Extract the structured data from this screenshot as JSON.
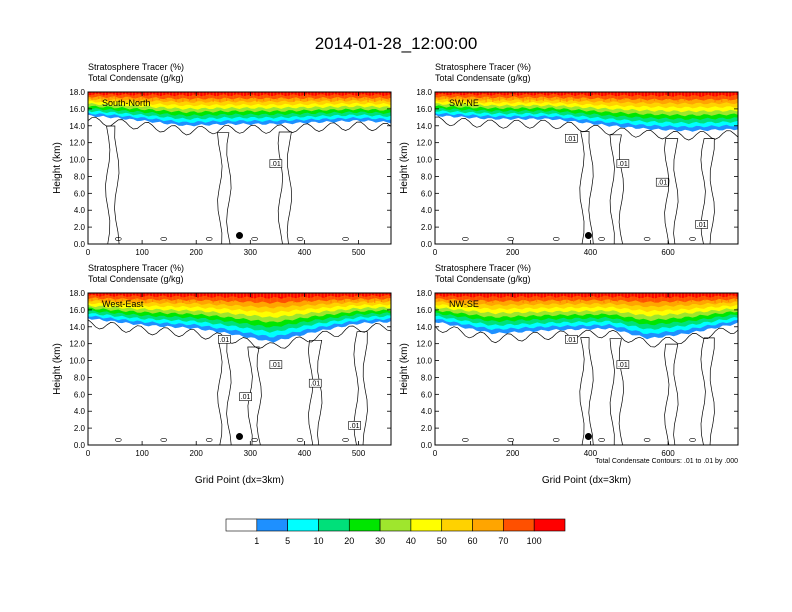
{
  "title": "2014-01-28_12:00:00",
  "colors": {
    "levels": [
      "#ffffff",
      "#1e90ff",
      "#00ffff",
      "#00e07a",
      "#00e600",
      "#9fe62d",
      "#ffff00",
      "#ffd200",
      "#ffa500",
      "#ff5000",
      "#ff0000"
    ],
    "contour": "#000000"
  },
  "footer": {
    "contour_note": "Total Condensate Contours: .01 to .01 by .000"
  },
  "chart_data": [
    {
      "type": "heatmap",
      "panel": "South-North",
      "label_line1": "Stratosphere Tracer   (%)",
      "label_line2": "Total Condensate   (g/kg)",
      "ylabel": "Height (km)",
      "xlabel": "",
      "xlim": [
        0,
        560
      ],
      "ylim": [
        0,
        18
      ],
      "x_ticks": [
        "0",
        "100",
        "200",
        "300",
        "400",
        "500"
      ],
      "y_ticks": [
        "0.0",
        "2.0",
        "4.0",
        "6.0",
        "8.0",
        "10.0",
        "12.0",
        "14.0",
        "16.0",
        "18.0"
      ],
      "marker_x": 280,
      "marker_y": 1.0,
      "contour_labels": [
        ".01"
      ],
      "tracer_bands_height_km": [
        [
          0,
          15.2
        ],
        [
          40,
          15.0
        ],
        [
          100,
          14.6
        ],
        [
          180,
          14.0
        ],
        [
          260,
          14.2
        ],
        [
          340,
          14.2
        ],
        [
          420,
          14.4
        ],
        [
          500,
          14.6
        ],
        [
          560,
          14.4
        ]
      ]
    },
    {
      "type": "heatmap",
      "panel": "SW-NE",
      "label_line1": "Stratosphere Tracer   (%)",
      "label_line2": "Total Condensate   (g/kg)",
      "ylabel": "Height (km)",
      "xlabel": "",
      "xlim": [
        0,
        780
      ],
      "ylim": [
        0,
        18
      ],
      "x_ticks": [
        "0",
        "200",
        "400",
        "600"
      ],
      "y_ticks": [
        "0.0",
        "2.0",
        "4.0",
        "6.0",
        "8.0",
        "10.0",
        "12.0",
        "14.0",
        "16.0",
        "18.0"
      ],
      "marker_x": 395,
      "marker_y": 1.0,
      "contour_labels": [
        ".01",
        ".01",
        ".01",
        ".01"
      ],
      "tracer_bands_height_km": [
        [
          0,
          15.2
        ],
        [
          150,
          14.8
        ],
        [
          300,
          14.8
        ],
        [
          450,
          14.0
        ],
        [
          550,
          13.6
        ],
        [
          650,
          13.4
        ],
        [
          780,
          13.6
        ]
      ]
    },
    {
      "type": "heatmap",
      "panel": "West-East",
      "label_line1": "Stratosphere Tracer   (%)",
      "label_line2": "Total Condensate   (g/kg)",
      "ylabel": "Height (km)",
      "xlabel": "Grid Point (dx=3km)",
      "xlim": [
        0,
        560
      ],
      "ylim": [
        0,
        18
      ],
      "x_ticks": [
        "0",
        "100",
        "200",
        "300",
        "400",
        "500"
      ],
      "y_ticks": [
        "0.0",
        "2.0",
        "4.0",
        "6.0",
        "8.0",
        "10.0",
        "12.0",
        "14.0",
        "16.0",
        "18.0"
      ],
      "marker_x": 280,
      "marker_y": 1.0,
      "contour_labels": [
        ".01",
        ".01",
        ".01",
        ".01",
        ".01"
      ],
      "tracer_bands_height_km": [
        [
          0,
          15.0
        ],
        [
          100,
          14.2
        ],
        [
          200,
          13.8
        ],
        [
          260,
          13.2
        ],
        [
          340,
          12.2
        ],
        [
          420,
          13.4
        ],
        [
          500,
          14.4
        ],
        [
          560,
          14.6
        ]
      ]
    },
    {
      "type": "heatmap",
      "panel": "NW-SE",
      "label_line1": "Stratosphere Tracer   (%)",
      "label_line2": "Total Condensate   (g/kg)",
      "ylabel": "Height (km)",
      "xlabel": "Grid Point (dx=3km)",
      "xlim": [
        0,
        780
      ],
      "ylim": [
        0,
        18
      ],
      "x_ticks": [
        "0",
        "200",
        "400",
        "600"
      ],
      "y_ticks": [
        "0.0",
        "2.0",
        "4.0",
        "6.0",
        "8.0",
        "10.0",
        "12.0",
        "14.0",
        "16.0",
        "18.0"
      ],
      "marker_x": 395,
      "marker_y": 1.0,
      "contour_labels": [
        ".01",
        ".01"
      ],
      "tracer_bands_height_km": [
        [
          0,
          14.6
        ],
        [
          150,
          13.2
        ],
        [
          300,
          13.6
        ],
        [
          450,
          13.8
        ],
        [
          550,
          12.6
        ],
        [
          650,
          13.2
        ],
        [
          780,
          14.4
        ]
      ]
    }
  ],
  "colorbar": {
    "labels": [
      "1",
      "5",
      "10",
      "20",
      "30",
      "40",
      "50",
      "60",
      "70",
      "100"
    ]
  }
}
